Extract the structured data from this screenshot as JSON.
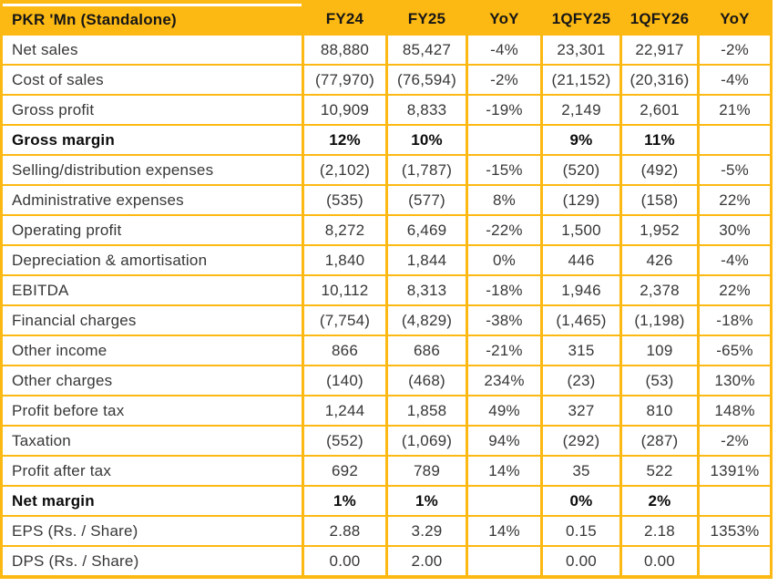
{
  "colors": {
    "accent": "#FDB913",
    "header_text": "#161616",
    "body_text": "#373737",
    "bold_text": "#0b0b0b"
  },
  "chart_data": {
    "type": "table",
    "title": "PKR 'Mn (Standalone)",
    "columns": [
      "PKR 'Mn (Standalone)",
      "FY24",
      "FY25",
      "YoY",
      "1QFY25",
      "1QFY26",
      "YoY"
    ],
    "rows": [
      {
        "label": "Net sales",
        "bold": false,
        "values": [
          "88,880",
          "85,427",
          "-4%",
          "23,301",
          "22,917",
          "-2%"
        ]
      },
      {
        "label": "Cost of sales",
        "bold": false,
        "values": [
          "(77,970)",
          "(76,594)",
          "-2%",
          "(21,152)",
          "(20,316)",
          "-4%"
        ]
      },
      {
        "label": "Gross profit",
        "bold": false,
        "values": [
          "10,909",
          "8,833",
          "-19%",
          "2,149",
          "2,601",
          "21%"
        ]
      },
      {
        "label": "Gross margin",
        "bold": true,
        "values": [
          "12%",
          "10%",
          "",
          "9%",
          "11%",
          ""
        ]
      },
      {
        "label": "Selling/distribution expenses",
        "bold": false,
        "values": [
          "(2,102)",
          "(1,787)",
          "-15%",
          "(520)",
          "(492)",
          "-5%"
        ]
      },
      {
        "label": "Administrative expenses",
        "bold": false,
        "values": [
          "(535)",
          "(577)",
          "8%",
          "(129)",
          "(158)",
          "22%"
        ]
      },
      {
        "label": "Operating profit",
        "bold": false,
        "values": [
          "8,272",
          "6,469",
          "-22%",
          "1,500",
          "1,952",
          "30%"
        ]
      },
      {
        "label": "Depreciation & amortisation",
        "bold": false,
        "values": [
          "1,840",
          "1,844",
          "0%",
          "446",
          "426",
          "-4%"
        ]
      },
      {
        "label": "EBITDA",
        "bold": false,
        "values": [
          "10,112",
          "8,313",
          "-18%",
          "1,946",
          "2,378",
          "22%"
        ]
      },
      {
        "label": "Financial charges",
        "bold": false,
        "values": [
          "(7,754)",
          "(4,829)",
          "-38%",
          "(1,465)",
          "(1,198)",
          "-18%"
        ]
      },
      {
        "label": "Other income",
        "bold": false,
        "values": [
          "866",
          "686",
          "-21%",
          "315",
          "109",
          "-65%"
        ]
      },
      {
        "label": "Other charges",
        "bold": false,
        "values": [
          "(140)",
          "(468)",
          "234%",
          "(23)",
          "(53)",
          "130%"
        ]
      },
      {
        "label": "Profit before tax",
        "bold": false,
        "values": [
          "1,244",
          "1,858",
          "49%",
          "327",
          "810",
          "148%"
        ]
      },
      {
        "label": "Taxation",
        "bold": false,
        "values": [
          "(552)",
          "(1,069)",
          "94%",
          "(292)",
          "(287)",
          "-2%"
        ]
      },
      {
        "label": "Profit after tax",
        "bold": false,
        "values": [
          "692",
          "789",
          "14%",
          "35",
          "522",
          "1391%"
        ]
      },
      {
        "label": "Net margin",
        "bold": true,
        "values": [
          "1%",
          "1%",
          "",
          "0%",
          "2%",
          ""
        ]
      },
      {
        "label": "EPS (Rs. / Share)",
        "bold": false,
        "values": [
          "2.88",
          "3.29",
          "14%",
          "0.15",
          "2.18",
          "1353%"
        ]
      },
      {
        "label": "DPS (Rs. / Share)",
        "bold": false,
        "values": [
          "0.00",
          "2.00",
          "",
          "0.00",
          "0.00",
          ""
        ]
      }
    ]
  }
}
